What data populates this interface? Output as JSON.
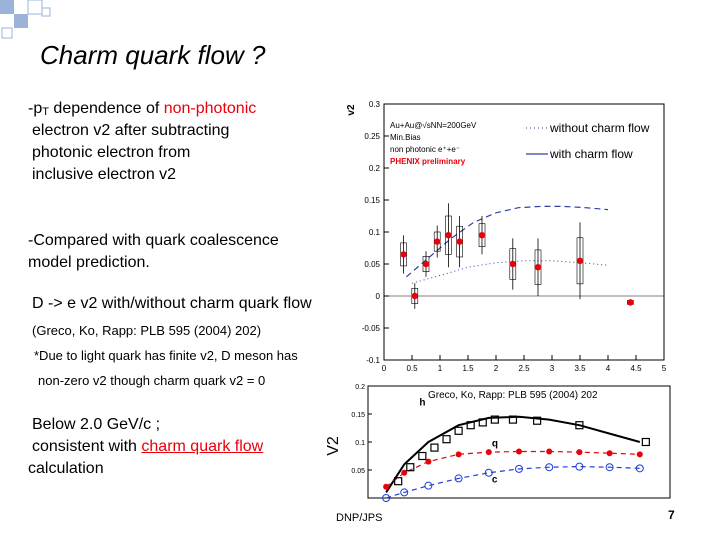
{
  "slide": {
    "title": "Charm quark flow ?",
    "bullet1": {
      "prefix": "-p",
      "t_sub": "T",
      "mid": " dependence of ",
      "highlight": "non-photonic",
      "line2": "electron v2 after subtracting",
      "line3": "photonic electron from",
      "line4": "inclusive electron v2"
    },
    "bullet2": {
      "line1": "-Compared with quark coalescence",
      "line2": "model prediction."
    },
    "bullet3": {
      "main": "D -> e v2 with/without charm quark flow",
      "ref": "(Greco, Ko, Rapp: PLB 595 (2004) 202)",
      "note1": "*Due to light quark has finite v2, D meson has",
      "note2": "non-zero v2 though charm quark v2 = 0"
    },
    "bullet4": {
      "line1": "Below 2.0 GeV/c ;",
      "line2_prefix": "consistent with ",
      "line2_link": "charm quark flow",
      "line3": "calculation"
    },
    "footer": {
      "conf": "DNP/JPS",
      "page": "7"
    },
    "colors": {
      "accent_red": "#e8000b",
      "deco_blue": "#9bb3d9"
    }
  },
  "chart_data": [
    {
      "type": "scatter",
      "ylabel": "v2",
      "xlim": [
        0,
        5
      ],
      "ylim": [
        -0.1,
        0.3
      ],
      "x_ticks": [
        0,
        0.5,
        1,
        1.5,
        2,
        2.5,
        3,
        3.5,
        4,
        4.5,
        5
      ],
      "y_ticks": [
        -0.1,
        -0.05,
        0,
        0.05,
        0.1,
        0.15,
        0.2,
        0.25,
        0.3
      ],
      "legend_text": [
        "Au+Au@√sNN=200GeV",
        "Min.Bias",
        "non photonic e⁺+e⁻",
        "PHENIX preliminary"
      ],
      "series": [
        {
          "name": "without charm flow",
          "style": "dotted",
          "x": [
            0.5,
            1.0,
            1.5,
            2.0,
            2.5,
            3.0,
            3.5,
            4.0
          ],
          "y": [
            0.02,
            0.032,
            0.045,
            0.052,
            0.055,
            0.055,
            0.052,
            0.048
          ]
        },
        {
          "name": "with charm flow",
          "style": "dashed",
          "x": [
            0.4,
            0.8,
            1.2,
            1.6,
            2.0,
            2.4,
            2.8,
            3.2,
            3.6,
            4.0
          ],
          "y": [
            0.03,
            0.06,
            0.09,
            0.115,
            0.13,
            0.138,
            0.14,
            0.14,
            0.138,
            0.135
          ]
        },
        {
          "name": "data",
          "points": [
            {
              "x": 0.35,
              "y": 0.065,
              "err": 0.03
            },
            {
              "x": 0.55,
              "y": 0.0,
              "err": 0.02
            },
            {
              "x": 0.75,
              "y": 0.05,
              "err": 0.02
            },
            {
              "x": 0.95,
              "y": 0.085,
              "err": 0.025
            },
            {
              "x": 1.15,
              "y": 0.095,
              "err": 0.05
            },
            {
              "x": 1.35,
              "y": 0.085,
              "err": 0.04
            },
            {
              "x": 1.75,
              "y": 0.095,
              "err": 0.03
            },
            {
              "x": 2.3,
              "y": 0.05,
              "err": 0.04
            },
            {
              "x": 2.75,
              "y": 0.045,
              "err": 0.045
            },
            {
              "x": 3.5,
              "y": 0.055,
              "err": 0.06
            },
            {
              "x": 4.4,
              "y": -0.01,
              "err": 0.005
            }
          ]
        }
      ]
    },
    {
      "type": "line",
      "ylabel": "V2",
      "annotation": "Greco, Ko, Rapp: PLB 595 (2004) 202",
      "xlim": [
        0,
        5
      ],
      "ylim": [
        0,
        0.2
      ],
      "y_ticks": [
        0.05,
        0.1,
        0.15,
        0.2
      ],
      "curve_labels": [
        "h",
        "q",
        "c"
      ],
      "series": [
        {
          "name": "h",
          "color": "#000000",
          "x": [
            0.3,
            0.6,
            1.0,
            1.5,
            2.0,
            2.5,
            3.0,
            3.5,
            4.0,
            4.5
          ],
          "y": [
            0.01,
            0.06,
            0.1,
            0.13,
            0.143,
            0.145,
            0.14,
            0.13,
            0.115,
            0.1
          ]
        },
        {
          "name": "q",
          "color": "#e8000b",
          "x": [
            0.3,
            0.6,
            1.0,
            1.5,
            2.0,
            2.5,
            3.0,
            3.5,
            4.0,
            4.5
          ],
          "y": [
            0.02,
            0.045,
            0.065,
            0.078,
            0.082,
            0.083,
            0.083,
            0.082,
            0.08,
            0.078
          ]
        },
        {
          "name": "c",
          "color": "#1f3fd6",
          "x": [
            0.3,
            0.6,
            1.0,
            1.5,
            2.0,
            2.5,
            3.0,
            3.5,
            4.0,
            4.5
          ],
          "y": [
            0.0,
            0.01,
            0.022,
            0.035,
            0.045,
            0.052,
            0.055,
            0.056,
            0.055,
            0.053
          ]
        }
      ],
      "points": [
        {
          "x": 0.5,
          "y": 0.03
        },
        {
          "x": 0.7,
          "y": 0.055
        },
        {
          "x": 0.9,
          "y": 0.075
        },
        {
          "x": 1.1,
          "y": 0.09
        },
        {
          "x": 1.3,
          "y": 0.105
        },
        {
          "x": 1.5,
          "y": 0.12
        },
        {
          "x": 1.7,
          "y": 0.13
        },
        {
          "x": 1.9,
          "y": 0.135
        },
        {
          "x": 2.1,
          "y": 0.14
        },
        {
          "x": 2.4,
          "y": 0.14
        },
        {
          "x": 2.8,
          "y": 0.138
        },
        {
          "x": 3.5,
          "y": 0.13
        },
        {
          "x": 4.6,
          "y": 0.1
        }
      ]
    }
  ]
}
